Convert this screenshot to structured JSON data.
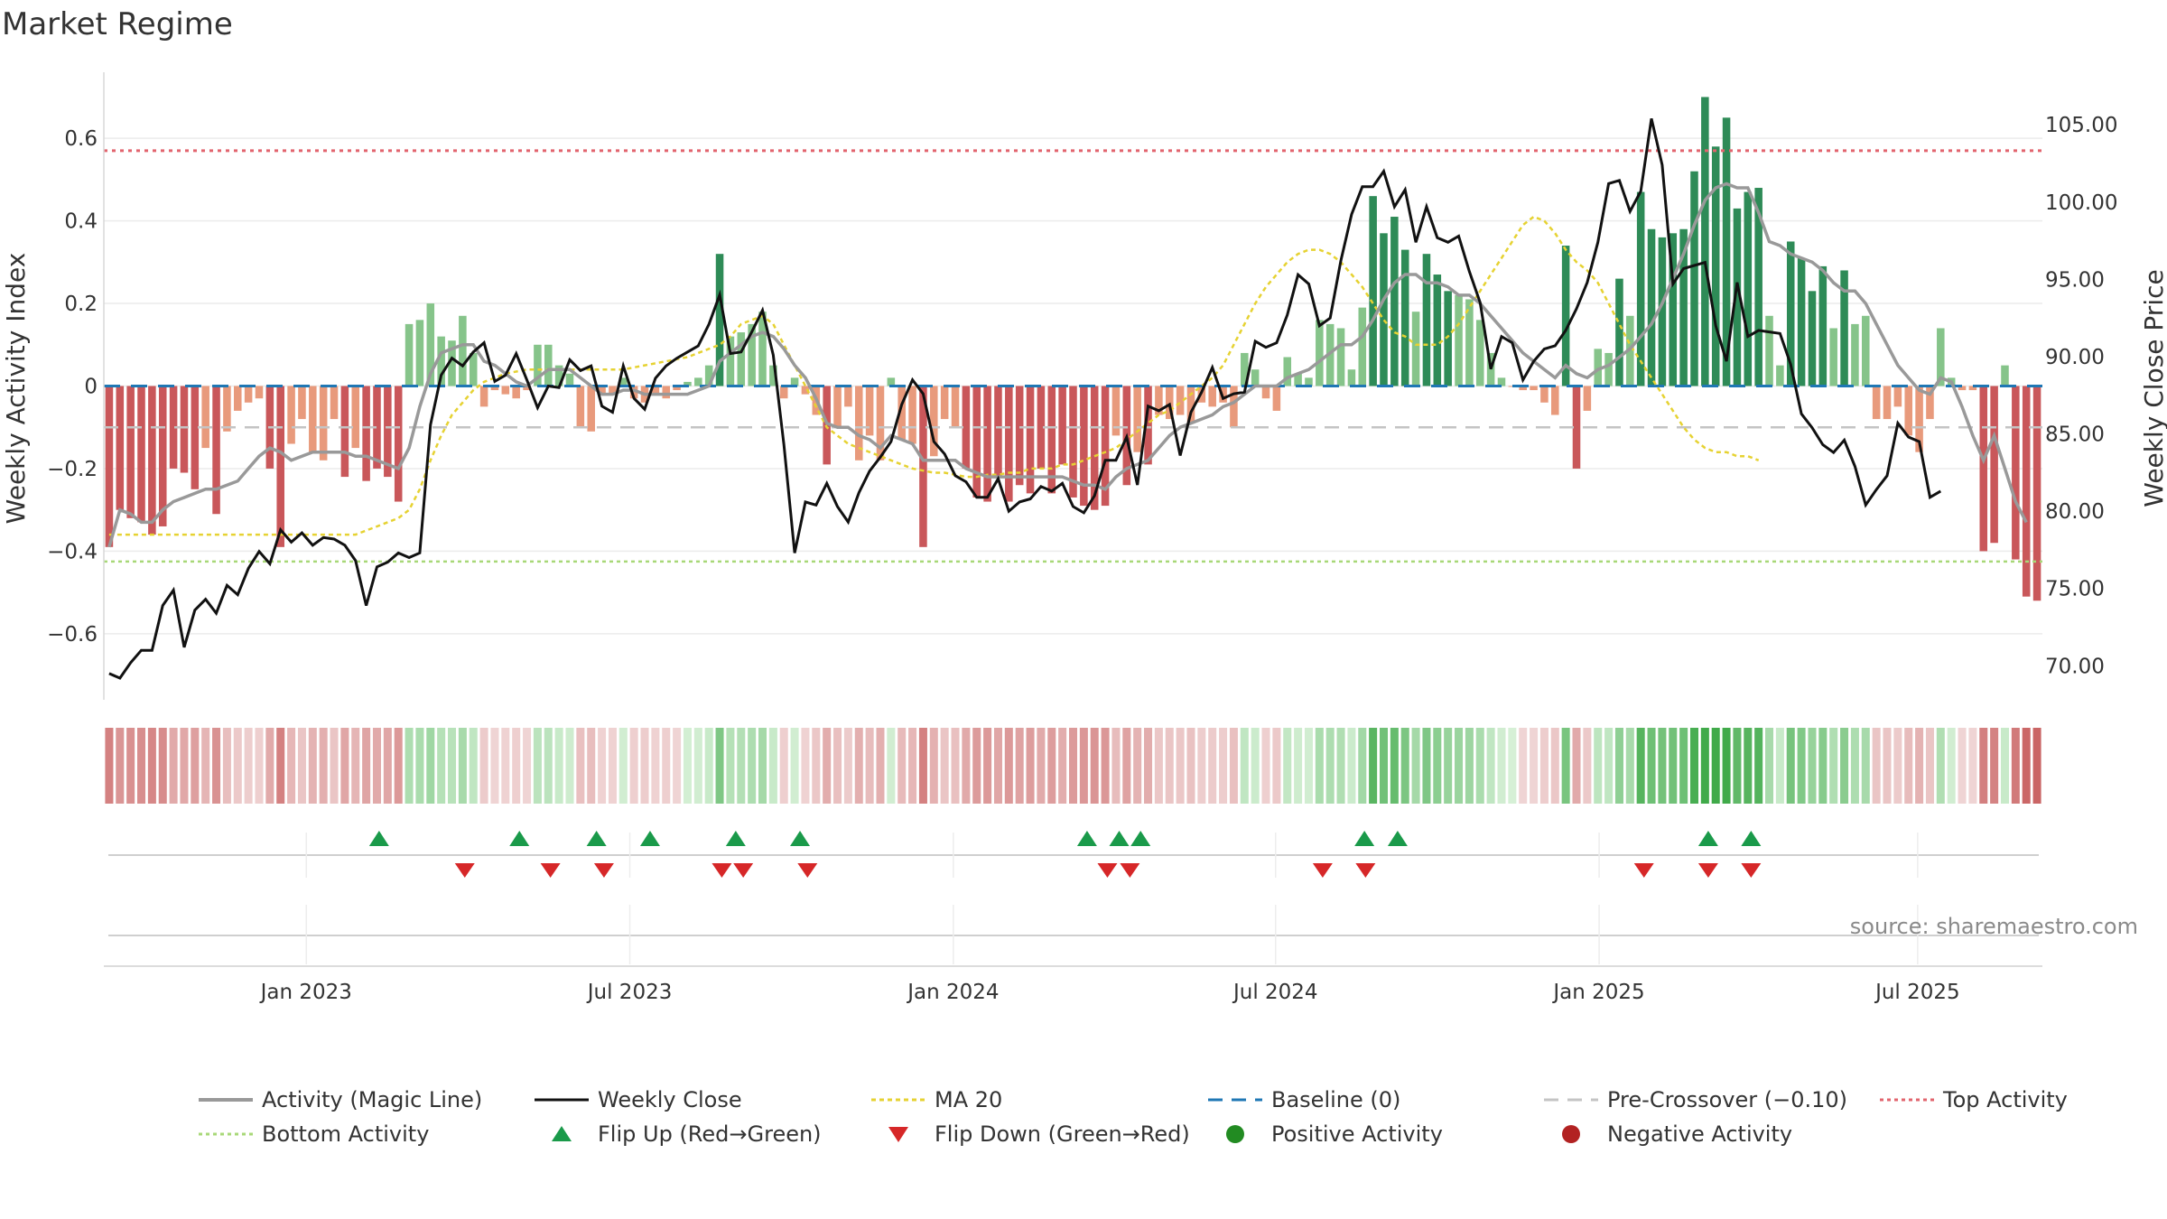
{
  "chart_data": {
    "type": "bar",
    "title": "Market Regime",
    "source": "source: sharemaestro.com",
    "y_left": {
      "label": "Weekly Activity Index",
      "ticks": [
        "0.6",
        "0.4",
        "0.2",
        "0",
        "−0.2",
        "−0.4",
        "−0.6"
      ],
      "values": [
        0.6,
        0.4,
        0.2,
        0,
        -0.2,
        -0.4,
        -0.6
      ],
      "ylim": [
        -0.76,
        0.76
      ]
    },
    "y_right": {
      "label": "Weekly Close Price",
      "ticks": [
        "105.00",
        "100.00",
        "95.00",
        "90.00",
        "85.00",
        "80.00",
        "75.00",
        "70.00"
      ],
      "values": [
        105,
        100,
        95,
        90,
        85,
        80,
        75,
        70
      ],
      "ylim": [
        67.8,
        108.4
      ]
    },
    "x_ticks": [
      {
        "label": "Jan 2023",
        "week": 16.4
      },
      {
        "label": "Jul 2023",
        "week": 42.6
      },
      {
        "label": "Jan 2024",
        "week": 68.8
      },
      {
        "label": "Jul 2024",
        "week": 94.9
      },
      {
        "label": "Jan 2025",
        "week": 121.1
      },
      {
        "label": "Jul 2025",
        "week": 146.9
      }
    ],
    "x_range_weeks": [
      0,
      157
    ],
    "lines": {
      "top_activity": 0.57,
      "bottom_activity": -0.425,
      "pre_crossover": -0.1,
      "baseline": 0
    },
    "activity": [
      -0.39,
      -0.3,
      -0.32,
      -0.33,
      -0.36,
      -0.34,
      -0.2,
      -0.21,
      -0.25,
      -0.15,
      -0.31,
      -0.11,
      -0.06,
      -0.04,
      -0.03,
      -0.2,
      -0.39,
      -0.14,
      -0.08,
      -0.16,
      -0.18,
      -0.08,
      -0.22,
      -0.15,
      -0.23,
      -0.2,
      -0.22,
      -0.28,
      0.15,
      0.16,
      0.2,
      0.12,
      0.11,
      0.17,
      0.08,
      -0.05,
      -0.01,
      -0.02,
      -0.03,
      -0.01,
      0.1,
      0.1,
      0.05,
      0.03,
      -0.1,
      -0.11,
      -0.02,
      -0.02,
      0.02,
      -0.03,
      -0.04,
      -0.02,
      -0.03,
      -0.01,
      0.01,
      0.02,
      0.05,
      0.32,
      0.12,
      0.13,
      0.15,
      0.18,
      0.05,
      -0.03,
      0.02,
      -0.02,
      -0.07,
      -0.19,
      -0.1,
      -0.05,
      -0.18,
      -0.12,
      -0.18,
      0.02,
      -0.13,
      -0.14,
      -0.39,
      -0.17,
      -0.08,
      -0.1,
      -0.2,
      -0.27,
      -0.28,
      -0.22,
      -0.28,
      -0.24,
      -0.26,
      -0.2,
      -0.26,
      -0.19,
      -0.27,
      -0.29,
      -0.3,
      -0.29,
      -0.12,
      -0.24,
      -0.16,
      -0.19,
      -0.07,
      -0.08,
      -0.07,
      -0.09,
      -0.04,
      -0.05,
      -0.04,
      -0.1,
      0.08,
      0.04,
      -0.03,
      -0.06,
      0.07,
      0.03,
      0.02,
      0.16,
      0.15,
      0.14,
      0.04,
      0.19,
      0.46,
      0.37,
      0.41,
      0.33,
      0.18,
      0.32,
      0.27,
      0.23,
      0.22,
      0.21,
      0.16,
      0.08,
      0.02,
      0.0,
      -0.01,
      -0.01,
      -0.04,
      -0.07,
      0.34,
      -0.2,
      -0.06,
      0.09,
      0.08,
      0.26,
      0.17,
      0.47,
      0.38,
      0.36,
      0.37,
      0.38,
      0.52,
      0.7,
      0.58,
      0.65,
      0.43,
      0.47,
      0.48,
      0.17,
      0.05,
      0.35,
      0.31,
      0.23,
      0.29,
      0.14,
      0.28,
      0.15,
      0.17,
      -0.08,
      -0.08,
      -0.05,
      -0.12,
      -0.16,
      -0.08,
      0.14,
      0.02,
      -0.01,
      -0.01,
      -0.4,
      -0.38,
      0.05,
      -0.42,
      -0.51,
      -0.52
    ],
    "weekly_close": [
      69.5,
      69.2,
      70.2,
      71.0,
      71.0,
      73.9,
      74.9,
      71.2,
      73.6,
      74.3,
      73.4,
      75.2,
      74.6,
      76.3,
      77.4,
      76.6,
      78.8,
      78.0,
      78.6,
      77.8,
      78.3,
      78.2,
      77.8,
      76.8,
      73.9,
      76.4,
      76.7,
      77.3,
      77.0,
      77.3,
      85.6,
      88.8,
      89.9,
      89.4,
      90.3,
      90.9,
      88.4,
      88.8,
      90.2,
      88.5,
      86.7,
      88.1,
      88.0,
      89.8,
      89.1,
      89.4,
      86.8,
      86.4,
      89.4,
      87.3,
      86.6,
      88.6,
      89.4,
      89.9,
      90.3,
      90.7,
      92.1,
      94.0,
      90.2,
      90.3,
      91.6,
      93.0,
      90.1,
      84.3,
      77.3,
      80.6,
      80.4,
      81.8,
      80.3,
      79.3,
      81.2,
      82.6,
      83.5,
      84.5,
      86.9,
      88.5,
      87.6,
      84.5,
      83.7,
      82.3,
      81.9,
      80.9,
      80.9,
      82.1,
      80.0,
      80.6,
      80.8,
      81.6,
      81.3,
      81.8,
      80.3,
      79.9,
      81.0,
      83.3,
      83.3,
      84.8,
      81.7,
      86.8,
      86.5,
      86.9,
      83.6,
      86.4,
      87.7,
      89.3,
      87.3,
      87.6,
      87.7,
      91.0,
      90.6,
      90.9,
      92.7,
      95.3,
      94.7,
      92.0,
      92.5,
      96.2,
      99.2,
      101.0,
      101.0,
      102.0,
      99.7,
      100.8,
      97.4,
      99.7,
      97.7,
      97.4,
      97.8,
      95.5,
      93.5,
      89.2,
      91.3,
      90.9,
      88.5,
      89.7,
      90.5,
      90.7,
      91.7,
      93.1,
      94.8,
      97.4,
      101.2,
      101.4,
      99.4,
      100.7,
      105.4,
      102.4,
      94.7,
      95.7,
      95.9,
      96.1,
      92.0,
      89.7,
      94.8,
      91.3,
      91.7,
      91.6,
      91.5,
      89.5,
      86.3,
      85.4,
      84.3,
      83.8,
      84.6,
      82.9,
      80.4,
      81.4,
      82.3,
      85.7,
      84.8,
      84.5,
      80.9,
      81.3
    ],
    "magic_line": [
      -0.39,
      -0.3,
      -0.31,
      -0.33,
      -0.33,
      -0.3,
      -0.28,
      -0.27,
      -0.26,
      -0.25,
      -0.25,
      -0.24,
      -0.23,
      -0.2,
      -0.17,
      -0.15,
      -0.16,
      -0.18,
      -0.17,
      -0.16,
      -0.16,
      -0.16,
      -0.16,
      -0.17,
      -0.17,
      -0.18,
      -0.19,
      -0.2,
      -0.15,
      -0.05,
      0.03,
      0.08,
      0.09,
      0.1,
      0.1,
      0.06,
      0.05,
      0.03,
      0.01,
      0.0,
      0.02,
      0.04,
      0.04,
      0.04,
      0.02,
      0.0,
      -0.02,
      -0.02,
      -0.01,
      -0.01,
      -0.02,
      -0.02,
      -0.02,
      -0.02,
      -0.02,
      -0.01,
      0.0,
      0.06,
      0.08,
      0.1,
      0.12,
      0.13,
      0.12,
      0.09,
      0.05,
      0.02,
      -0.03,
      -0.09,
      -0.1,
      -0.1,
      -0.12,
      -0.13,
      -0.15,
      -0.12,
      -0.13,
      -0.14,
      -0.18,
      -0.18,
      -0.18,
      -0.18,
      -0.2,
      -0.21,
      -0.22,
      -0.22,
      -0.22,
      -0.22,
      -0.22,
      -0.22,
      -0.22,
      -0.22,
      -0.23,
      -0.24,
      -0.24,
      -0.25,
      -0.22,
      -0.2,
      -0.19,
      -0.18,
      -0.15,
      -0.12,
      -0.1,
      -0.09,
      -0.08,
      -0.07,
      -0.05,
      -0.04,
      -0.02,
      0.0,
      0.0,
      0.0,
      0.02,
      0.03,
      0.04,
      0.06,
      0.08,
      0.1,
      0.1,
      0.12,
      0.16,
      0.21,
      0.25,
      0.27,
      0.27,
      0.25,
      0.25,
      0.24,
      0.22,
      0.22,
      0.2,
      0.17,
      0.14,
      0.11,
      0.08,
      0.06,
      0.04,
      0.02,
      0.05,
      0.03,
      0.02,
      0.04,
      0.05,
      0.07,
      0.09,
      0.12,
      0.15,
      0.2,
      0.26,
      0.32,
      0.39,
      0.45,
      0.48,
      0.49,
      0.48,
      0.48,
      0.42,
      0.35,
      0.34,
      0.32,
      0.31,
      0.3,
      0.28,
      0.25,
      0.23,
      0.23,
      0.2,
      0.15,
      0.1,
      0.05,
      0.02,
      -0.01,
      -0.02,
      0.02,
      0.01,
      -0.05,
      -0.12,
      -0.18,
      -0.12,
      -0.2,
      -0.28,
      -0.33
    ],
    "ma20": [
      -0.36,
      -0.36,
      -0.36,
      -0.36,
      -0.36,
      -0.36,
      -0.36,
      -0.36,
      -0.36,
      -0.36,
      -0.36,
      -0.36,
      -0.36,
      -0.36,
      -0.36,
      -0.36,
      -0.36,
      -0.36,
      -0.36,
      -0.36,
      -0.36,
      -0.36,
      -0.36,
      -0.36,
      -0.35,
      -0.34,
      -0.33,
      -0.32,
      -0.3,
      -0.25,
      -0.18,
      -0.12,
      -0.07,
      -0.04,
      -0.01,
      0.01,
      0.02,
      0.03,
      0.035,
      0.04,
      0.04,
      0.04,
      0.04,
      0.04,
      0.04,
      0.04,
      0.04,
      0.04,
      0.04,
      0.045,
      0.05,
      0.055,
      0.06,
      0.065,
      0.07,
      0.08,
      0.09,
      0.1,
      0.12,
      0.15,
      0.16,
      0.17,
      0.15,
      0.1,
      0.05,
      0.0,
      -0.05,
      -0.1,
      -0.12,
      -0.14,
      -0.15,
      -0.16,
      -0.17,
      -0.18,
      -0.19,
      -0.2,
      -0.205,
      -0.21,
      -0.21,
      -0.215,
      -0.22,
      -0.22,
      -0.215,
      -0.215,
      -0.21,
      -0.21,
      -0.2,
      -0.2,
      -0.2,
      -0.19,
      -0.19,
      -0.18,
      -0.17,
      -0.16,
      -0.15,
      -0.13,
      -0.11,
      -0.09,
      -0.07,
      -0.06,
      -0.04,
      -0.02,
      0.0,
      0.02,
      0.05,
      0.1,
      0.15,
      0.2,
      0.24,
      0.27,
      0.3,
      0.32,
      0.33,
      0.33,
      0.32,
      0.3,
      0.27,
      0.24,
      0.2,
      0.16,
      0.13,
      0.12,
      0.1,
      0.1,
      0.1,
      0.12,
      0.15,
      0.19,
      0.23,
      0.27,
      0.31,
      0.35,
      0.39,
      0.41,
      0.4,
      0.37,
      0.33,
      0.3,
      0.28,
      0.25,
      0.2,
      0.15,
      0.1,
      0.06,
      0.02,
      -0.02,
      -0.06,
      -0.1,
      -0.13,
      -0.15,
      -0.16,
      -0.16,
      -0.17,
      -0.17,
      -0.18
    ],
    "flip_up_weeks": [
      25.2,
      38.3,
      45.5,
      50.5,
      58.5,
      64.5,
      91.3,
      94.3,
      96.3,
      117.2,
      120.3,
      149.3,
      153.3
    ],
    "flip_down_weeks": [
      33.2,
      41.2,
      46.2,
      57.2,
      59.2,
      65.2,
      93.2,
      95.3,
      113.3,
      117.3,
      143.3,
      149.3,
      153.3
    ],
    "series": [
      {
        "name": "Activity (Magic Line)",
        "color": "#999999"
      },
      {
        "name": "Weekly Close",
        "color": "#000000"
      },
      {
        "name": "MA 20",
        "color": "#e6d232"
      },
      {
        "name": "Baseline (0)",
        "color": "#1f77b4"
      },
      {
        "name": "Pre-Crossover (−0.10)",
        "color": "#c8c8c8"
      },
      {
        "name": "Top Activity",
        "color": "#e2646e"
      },
      {
        "name": "Bottom Activity",
        "color": "#a8d878"
      },
      {
        "name": "Flip Up (Red→Green)",
        "color": "#1a9a4a"
      },
      {
        "name": "Flip Down (Green→Red)",
        "color": "#d62728"
      },
      {
        "name": "Positive Activity",
        "color": "#228b22"
      },
      {
        "name": "Negative Activity",
        "color": "#b22222"
      }
    ]
  }
}
